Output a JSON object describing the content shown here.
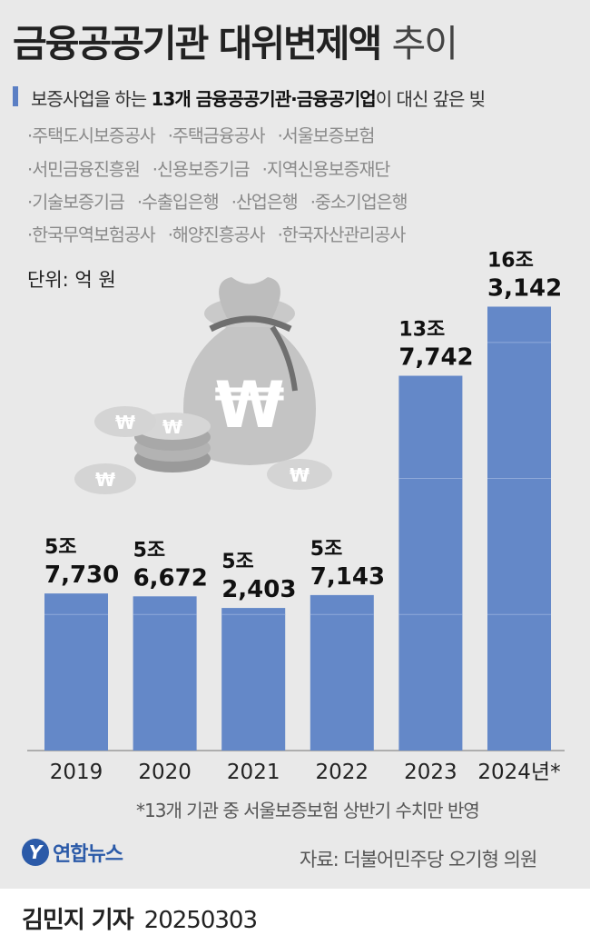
{
  "header": {
    "title_bold": "금융공공기관 대위변제액",
    "title_light": "추이",
    "subtitle_prefix": "보증사업을 하는 ",
    "subtitle_bold": "13개 금융공공기관·금융공기업",
    "subtitle_suffix": "이 대신 갚은 빚"
  },
  "institutions": [
    [
      "·주택도시보증공사",
      "·주택금융공사",
      "·서울보증보험"
    ],
    [
      "·서민금융진흥원",
      "·신용보증기금",
      "·지역신용보증재단"
    ],
    [
      "·기술보증기금",
      "·수출입은행",
      "·산업은행",
      "·중소기업은행"
    ],
    [
      "·한국무역보험공사",
      "·해양진흥공사",
      "·한국자산관리공사"
    ]
  ],
  "chart_data": {
    "type": "bar",
    "unit_label": "단위: 억 원",
    "categories": [
      "2019",
      "2020",
      "2021",
      "2022",
      "2023",
      "2024년*"
    ],
    "values": [
      57730,
      56672,
      52403,
      57143,
      137742,
      163142
    ],
    "value_labels": [
      [
        "5조",
        "7,730"
      ],
      [
        "5조",
        "6,672"
      ],
      [
        "5조",
        "2,403"
      ],
      [
        "5조",
        "7,143"
      ],
      [
        "13조",
        "7,742"
      ],
      [
        "16조",
        "3,142"
      ]
    ],
    "ylim": [
      0,
      180000
    ],
    "bar_color": "#6488c8"
  },
  "footnote": "*13개 기관 중 서울보증보험 상반기 수치만 반영",
  "source": "자료: 더불어민주당 오기형 의원",
  "logo": {
    "mark": "Y",
    "text": "연합뉴스"
  },
  "reporter": {
    "name": "김민지 기자",
    "date": "20250303"
  }
}
